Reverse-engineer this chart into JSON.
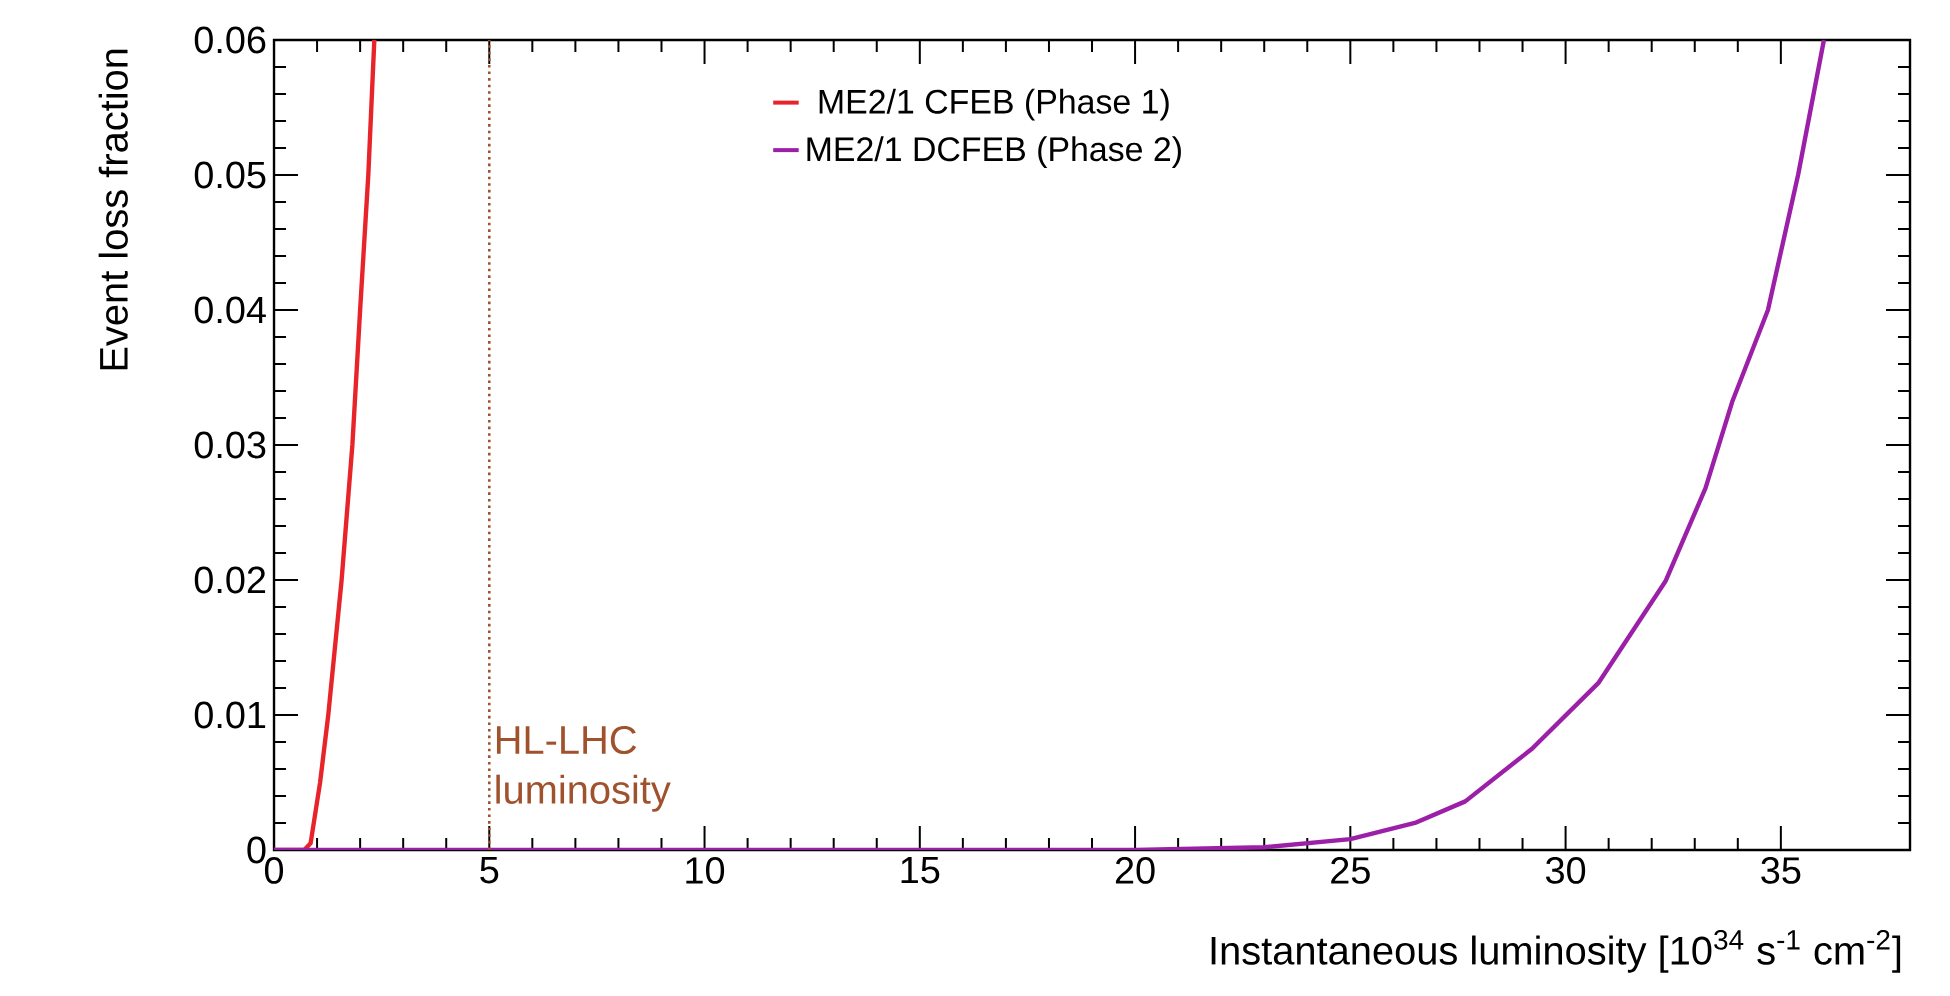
{
  "chart_data": {
    "type": "line",
    "xlabel": "Instantaneous luminosity [10$^{34}$ s$^{-1}$ cm$^{-2}$]",
    "ylabel": "Event loss fraction",
    "xlim": [
      0,
      38
    ],
    "ylim": [
      0,
      0.06
    ],
    "xticks": [
      0,
      5,
      10,
      15,
      20,
      25,
      30,
      35
    ],
    "yticks": [
      0,
      0.01,
      0.02,
      0.03,
      0.04,
      0.05,
      0.06
    ],
    "grid": false,
    "legend": "top",
    "marker": "none",
    "line_style": "solid",
    "series": [
      {
        "name": "ME2/1 CFEB (Phase 1)",
        "color": "#e8242b",
        "x": [
          0,
          0.7,
          0.85,
          1.07,
          1.26,
          1.57,
          1.82,
          2.0,
          2.19,
          2.33
        ],
        "values": [
          0,
          0,
          0.0005,
          0.005,
          0.01,
          0.02,
          0.03,
          0.04,
          0.05,
          0.06
        ]
      },
      {
        "name": "ME2/1 DCFEB (Phase 2)",
        "color": "#9c1fa8",
        "x": [
          0,
          20,
          23,
          25,
          26.5,
          27.67,
          29.22,
          30.77,
          32.32,
          33.25,
          33.87,
          34.7,
          35.4,
          36
        ],
        "values": [
          0,
          0,
          0.0002,
          0.0008,
          0.002,
          0.0036,
          0.0075,
          0.0124,
          0.0199,
          0.0268,
          0.0332,
          0.04,
          0.05,
          0.06
        ]
      }
    ],
    "ref_lines": [
      {
        "axis": "x",
        "value": 5,
        "label": "HL-LHC luminosity",
        "color": "#a0522d",
        "line_style": "dotted"
      }
    ]
  }
}
